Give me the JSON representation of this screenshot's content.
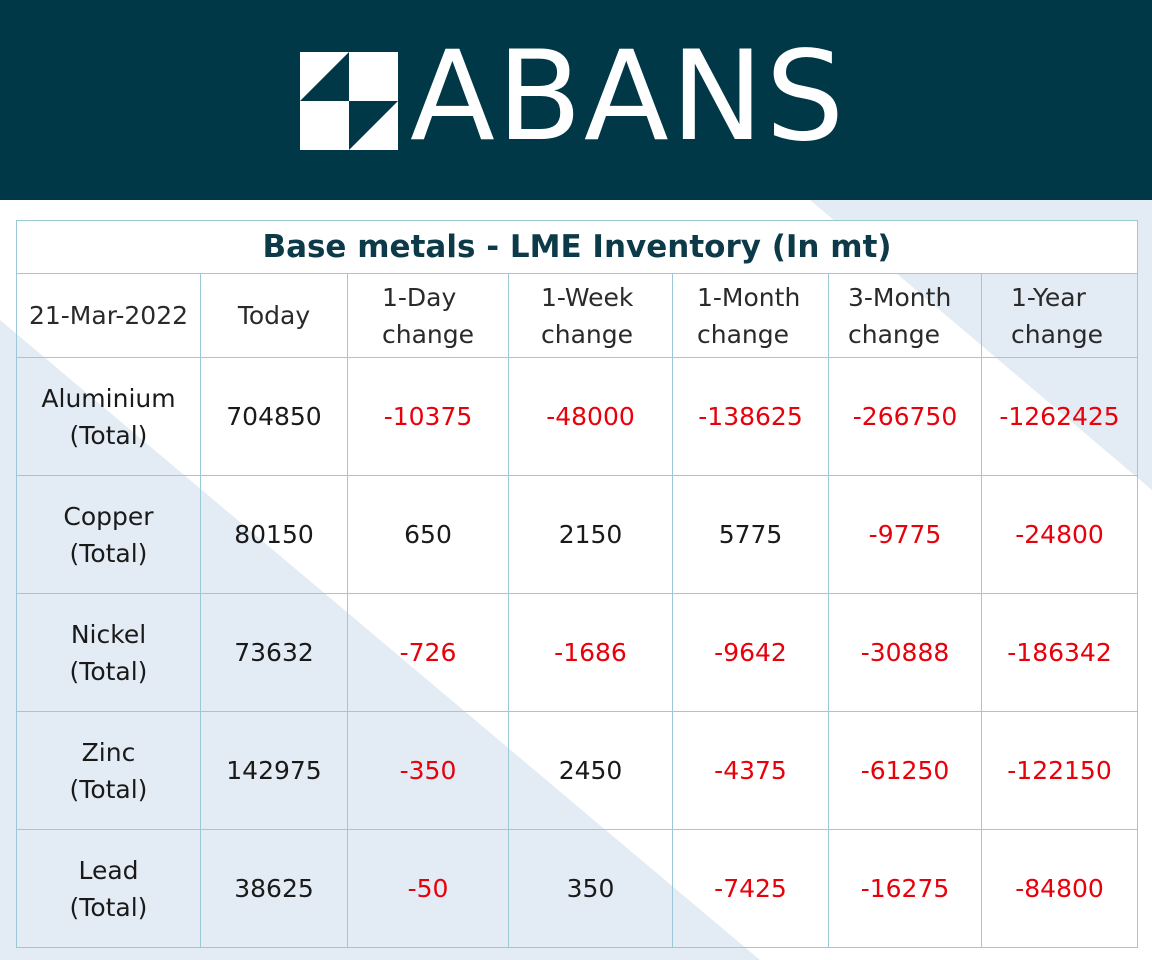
{
  "brand": {
    "name": "ABANS"
  },
  "table": {
    "title": "Base metals - LME Inventory (In mt)",
    "date": "21-Mar-2022",
    "columns": [
      "Today",
      "1-Day\nchange",
      "1-Week\nchange",
      "1-Month\nchange",
      "3-Month\nchange",
      "1-Year\nchange"
    ],
    "rows": [
      {
        "metal": "Aluminium\n(Total)",
        "values": [
          "704850",
          "-10375",
          "-48000",
          "-138625",
          "-266750",
          "-1262425"
        ]
      },
      {
        "metal": "Copper\n(Total)",
        "values": [
          "80150",
          "650",
          "2150",
          "5775",
          "-9775",
          "-24800"
        ]
      },
      {
        "metal": "Nickel\n(Total)",
        "values": [
          "73632",
          "-726",
          "-1686",
          "-9642",
          "-30888",
          "-186342"
        ]
      },
      {
        "metal": "Zinc\n(Total)",
        "values": [
          "142975",
          "-350",
          "2450",
          "-4375",
          "-61250",
          "-122150"
        ]
      },
      {
        "metal": "Lead\n(Total)",
        "values": [
          "38625",
          "-50",
          "350",
          "-7425",
          "-16275",
          "-84800"
        ]
      }
    ]
  },
  "chart_data": {
    "type": "table",
    "title": "Base metals - LME Inventory (In mt)",
    "date": "21-Mar-2022",
    "columns": [
      "Today",
      "1-Day change",
      "1-Week change",
      "1-Month change",
      "3-Month change",
      "1-Year change"
    ],
    "series": [
      {
        "name": "Aluminium (Total)",
        "values": [
          704850,
          -10375,
          -48000,
          -138625,
          -266750,
          -1262425
        ]
      },
      {
        "name": "Copper (Total)",
        "values": [
          80150,
          650,
          2150,
          5775,
          -9775,
          -24800
        ]
      },
      {
        "name": "Nickel (Total)",
        "values": [
          73632,
          -726,
          -1686,
          -9642,
          -30888,
          -186342
        ]
      },
      {
        "name": "Zinc (Total)",
        "values": [
          142975,
          -350,
          2450,
          -4375,
          -61250,
          -122150
        ]
      },
      {
        "name": "Lead (Total)",
        "values": [
          38625,
          -50,
          350,
          -7425,
          -16275,
          -84800
        ]
      }
    ]
  },
  "colors": {
    "header_bg": "#003847",
    "negative": "#e8000b",
    "grid": "#9cc9d8",
    "bg_band": "#e3ebf4"
  }
}
